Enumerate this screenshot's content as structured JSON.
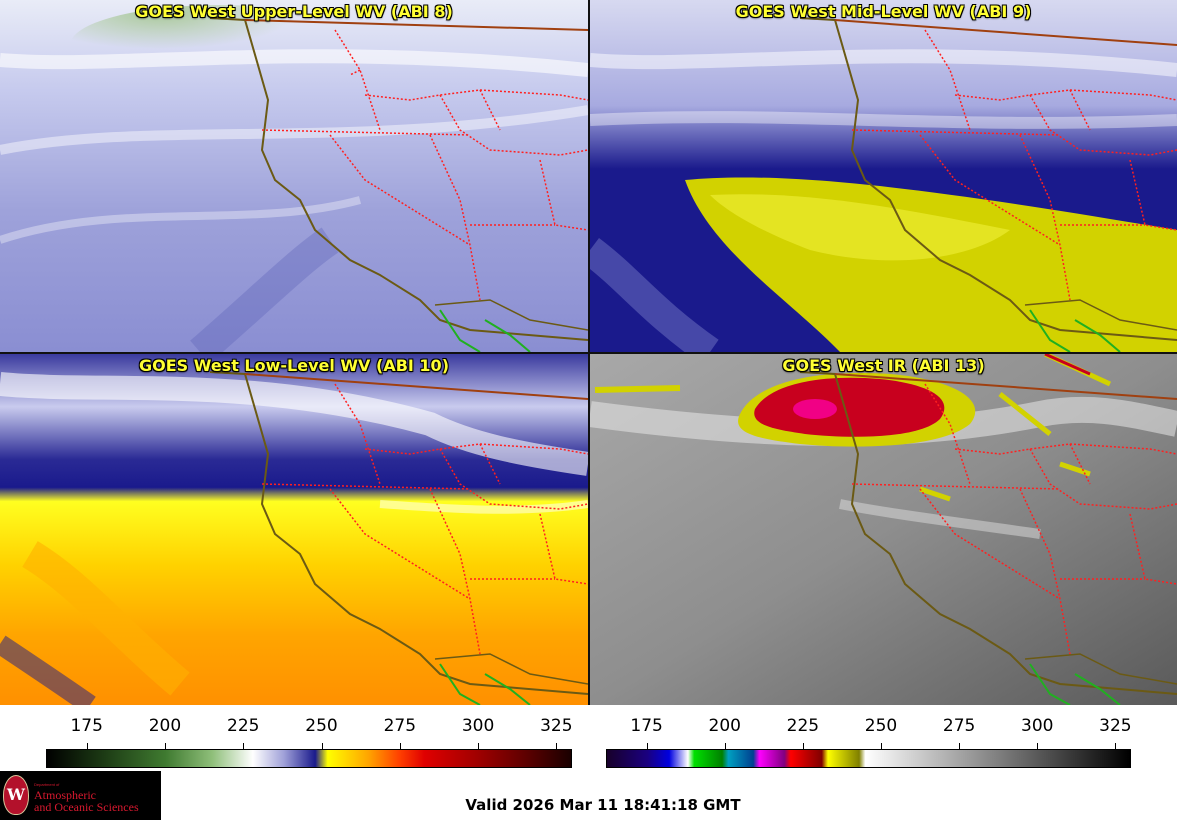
{
  "panels": {
    "upper": {
      "title": "GOES West Upper-Level WV (ABI 8)"
    },
    "mid": {
      "title": "GOES West Mid-Level WV (ABI 9)"
    },
    "low": {
      "title": "GOES West Low-Level WV (ABI 10)"
    },
    "ir": {
      "title": "GOES West IR (ABI 13)"
    }
  },
  "colorbar_wv": {
    "ticks": [
      "175",
      "200",
      "225",
      "250",
      "275",
      "300",
      "325"
    ],
    "tick_values": [
      175,
      200,
      225,
      250,
      275,
      300,
      325
    ],
    "range": [
      162,
      330
    ],
    "stops": [
      {
        "v": 162,
        "c": "#000000"
      },
      {
        "v": 180,
        "c": "#1c3a14"
      },
      {
        "v": 200,
        "c": "#3f7a30"
      },
      {
        "v": 215,
        "c": "#8fbf7a"
      },
      {
        "v": 228,
        "c": "#ffffff"
      },
      {
        "v": 238,
        "c": "#9fa0d8"
      },
      {
        "v": 248,
        "c": "#1a1a8c"
      },
      {
        "v": 252,
        "c": "#ffff00"
      },
      {
        "v": 265,
        "c": "#ffa500"
      },
      {
        "v": 275,
        "c": "#ff4000"
      },
      {
        "v": 283,
        "c": "#e00000"
      },
      {
        "v": 300,
        "c": "#a00000"
      },
      {
        "v": 315,
        "c": "#600000"
      },
      {
        "v": 330,
        "c": "#1a0000"
      }
    ]
  },
  "colorbar_ir": {
    "ticks": [
      "175",
      "200",
      "225",
      "250",
      "275",
      "300",
      "325"
    ],
    "tick_values": [
      175,
      200,
      225,
      250,
      275,
      300,
      325
    ],
    "range": [
      162,
      330
    ],
    "stops": [
      {
        "v": 162,
        "c": "#18002a"
      },
      {
        "v": 175,
        "c": "#1a0080"
      },
      {
        "v": 182,
        "c": "#0000e0"
      },
      {
        "v": 188,
        "c": "#ffffff"
      },
      {
        "v": 190,
        "c": "#00e000"
      },
      {
        "v": 199,
        "c": "#008000"
      },
      {
        "v": 201,
        "c": "#00a0c0"
      },
      {
        "v": 209,
        "c": "#004090"
      },
      {
        "v": 211,
        "c": "#ff00ff"
      },
      {
        "v": 219,
        "c": "#800080"
      },
      {
        "v": 221,
        "c": "#ff0000"
      },
      {
        "v": 231,
        "c": "#800000"
      },
      {
        "v": 233,
        "c": "#ffff00"
      },
      {
        "v": 243,
        "c": "#808000"
      },
      {
        "v": 245,
        "c": "#ffffff"
      },
      {
        "v": 330,
        "c": "#000000"
      }
    ]
  },
  "footer": {
    "valid": "Valid 2026 Mar 11 18:41:18 GMT",
    "logo_seal": "W",
    "logo_dept": "Department of",
    "logo_line1": "Atmospheric",
    "logo_line2": "and Oceanic Sciences"
  },
  "colors": {
    "coast": "#6b5a14",
    "state_borders": "#ff2020",
    "canada_border": "#a04010",
    "mexico_coast": "#20b020"
  }
}
